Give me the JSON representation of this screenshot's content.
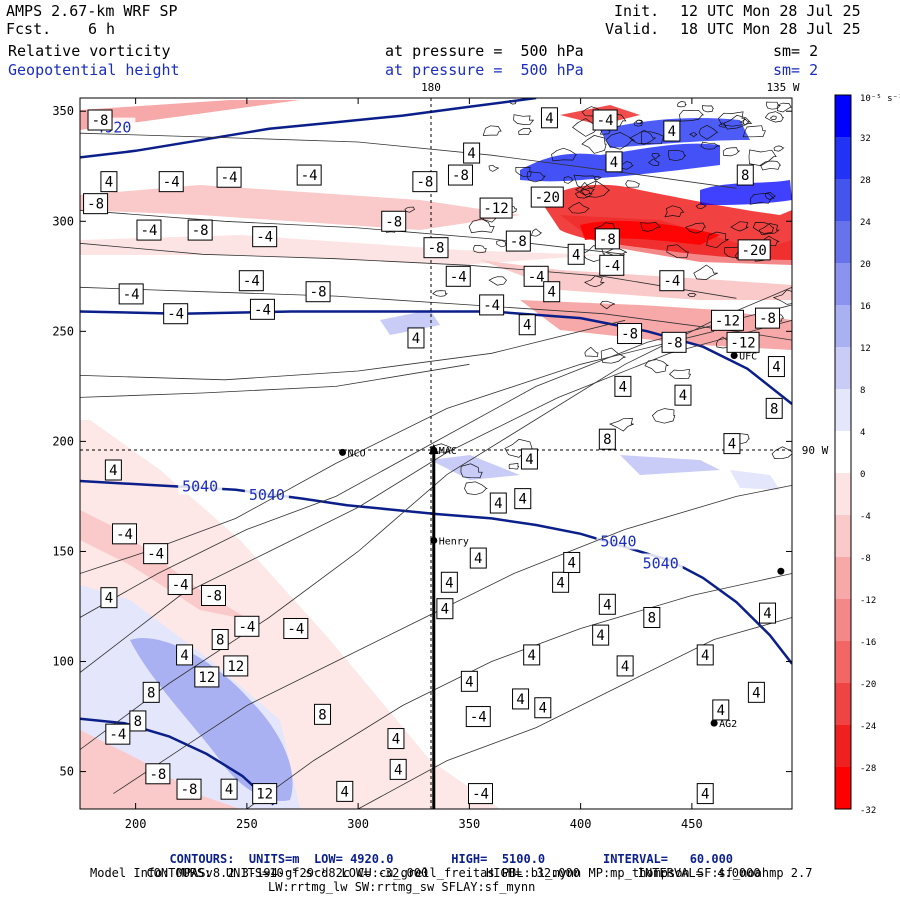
{
  "header": {
    "model": "AMPS 2.67-km WRF SP",
    "fcst_label": "Fcst.",
    "fcst_value": "6 h",
    "init_label": "Init.",
    "init_value": "12 UTC Mon 28 Jul 25",
    "valid_label": "Valid.",
    "valid_value": "18 UTC Mon 28 Jul 25",
    "field1": "Relative vorticity",
    "field2": "Geopotential height",
    "pressure1": "at pressure =  500 hPa",
    "pressure2": "at pressure =  500 hPa",
    "sm1": "sm= 2",
    "sm2": "sm= 2"
  },
  "map_labels": {
    "lon_180": "180",
    "lon_135w": "135 W",
    "lat_90w": "90 W"
  },
  "stations": [
    {
      "name": "NCO",
      "x": 293,
      "y": 195
    },
    {
      "name": "Henry",
      "x": 334,
      "y": 155
    },
    {
      "name": "MAC",
      "x": 334,
      "y": 196
    },
    {
      "name": "UFC",
      "x": 469,
      "y": 239
    },
    {
      "name": "AG2",
      "x": 460,
      "y": 72
    },
    {
      "name": "",
      "x": 490,
      "y": 141
    }
  ],
  "colorbar": {
    "unit": "10⁻⁵ s⁻¹",
    "levels": [
      32,
      28,
      24,
      20,
      16,
      12,
      8,
      4,
      0,
      -4,
      -8,
      -12,
      -16,
      -20,
      -24,
      -28,
      -32
    ],
    "colors": [
      "#0000ff",
      "#2233f5",
      "#4455ee",
      "#6673ea",
      "#8a93ef",
      "#aab1f3",
      "#c8ccf7",
      "#e4e6fb",
      "#ffffff",
      "#fde4e4",
      "#fac9c9",
      "#f7a9a9",
      "#f48888",
      "#f26666",
      "#f04444",
      "#ef2020",
      "#ff0000"
    ]
  },
  "chart_data": {
    "type": "contour",
    "xlim": [
      175,
      495
    ],
    "ylim": [
      33,
      356
    ],
    "xticks": [
      200,
      250,
      300,
      350,
      400,
      450
    ],
    "yticks": [
      50,
      100,
      150,
      200,
      250,
      300,
      350
    ],
    "cross_section": {
      "x": [
        334,
        334
      ],
      "y": [
        33,
        197
      ]
    },
    "height_contours": [
      {
        "value": 4920,
        "label": "4920",
        "points": [
          [
            175,
            329
          ],
          [
            200,
            332
          ],
          [
            230,
            337
          ],
          [
            260,
            342
          ],
          [
            290,
            345
          ],
          [
            320,
            348
          ],
          [
            350,
            352
          ],
          [
            380,
            356
          ]
        ]
      },
      {
        "value": 4980,
        "label": "",
        "points": [
          [
            175,
            259
          ],
          [
            220,
            258
          ],
          [
            270,
            259
          ],
          [
            320,
            259
          ],
          [
            360,
            259
          ],
          [
            400,
            256
          ],
          [
            430,
            250
          ],
          [
            455,
            243
          ],
          [
            475,
            233
          ],
          [
            495,
            217
          ]
        ]
      },
      {
        "value": 5040,
        "label": "5040",
        "points": [
          [
            175,
            182
          ],
          [
            210,
            180
          ],
          [
            245,
            178
          ],
          [
            275,
            174
          ],
          [
            295,
            171
          ],
          [
            315,
            169
          ],
          [
            335,
            167
          ],
          [
            360,
            165
          ],
          [
            380,
            162
          ],
          [
            400,
            158
          ],
          [
            420,
            152
          ],
          [
            440,
            146
          ],
          [
            455,
            138
          ],
          [
            470,
            127
          ],
          [
            485,
            112
          ],
          [
            495,
            99
          ]
        ]
      },
      {
        "value": 5100,
        "label": "",
        "points": [
          [
            175,
            74
          ],
          [
            195,
            72
          ],
          [
            215,
            66
          ],
          [
            232,
            58
          ],
          [
            248,
            48
          ],
          [
            262,
            35
          ]
        ]
      }
    ],
    "vorticity_labels": [
      {
        "v": -8,
        "x": 184,
        "y": 346
      },
      {
        "v": -4,
        "x": 278,
        "y": 321
      },
      {
        "v": 4,
        "x": 188,
        "y": 318
      },
      {
        "v": -4,
        "x": 216,
        "y": 318
      },
      {
        "v": -4,
        "x": 242,
        "y": 320
      },
      {
        "v": -8,
        "x": 182,
        "y": 308
      },
      {
        "v": -4,
        "x": 206,
        "y": 296
      },
      {
        "v": -8,
        "x": 229,
        "y": 296
      },
      {
        "v": -4,
        "x": 258,
        "y": 293
      },
      {
        "v": -4,
        "x": 252,
        "y": 273
      },
      {
        "v": -8,
        "x": 282,
        "y": 268
      },
      {
        "v": -4,
        "x": 198,
        "y": 267
      },
      {
        "v": -4,
        "x": 218,
        "y": 258
      },
      {
        "v": -4,
        "x": 257,
        "y": 260
      },
      {
        "v": -8,
        "x": 330,
        "y": 318
      },
      {
        "v": -8,
        "x": 346,
        "y": 321
      },
      {
        "v": -8,
        "x": 316,
        "y": 300
      },
      {
        "v": -8,
        "x": 335,
        "y": 288
      },
      {
        "v": -4,
        "x": 345,
        "y": 275
      },
      {
        "v": -8,
        "x": 372,
        "y": 291
      },
      {
        "v": -4,
        "x": 380,
        "y": 275
      },
      {
        "v": 4,
        "x": 387,
        "y": 268
      },
      {
        "v": 4,
        "x": 386,
        "y": 347
      },
      {
        "v": -4,
        "x": 411,
        "y": 346
      },
      {
        "v": 4,
        "x": 351,
        "y": 331
      },
      {
        "v": -12,
        "x": 362,
        "y": 306
      },
      {
        "v": -20,
        "x": 385,
        "y": 311
      },
      {
        "v": -8,
        "x": 412,
        "y": 292
      },
      {
        "v": -4,
        "x": 414,
        "y": 280
      },
      {
        "v": 4,
        "x": 398,
        "y": 285
      },
      {
        "v": -4,
        "x": 360,
        "y": 262
      },
      {
        "v": 4,
        "x": 376,
        "y": 253
      },
      {
        "v": 4,
        "x": 326,
        "y": 247
      },
      {
        "v": -4,
        "x": 441,
        "y": 273
      },
      {
        "v": -12,
        "x": 466,
        "y": 255
      },
      {
        "v": -8,
        "x": 484,
        "y": 256
      },
      {
        "v": -8,
        "x": 422,
        "y": 249
      },
      {
        "v": -8,
        "x": 442,
        "y": 245
      },
      {
        "v": -12,
        "x": 473,
        "y": 245
      },
      {
        "v": 4,
        "x": 488,
        "y": 234
      },
      {
        "v": 4,
        "x": 446,
        "y": 221
      },
      {
        "v": 4,
        "x": 419,
        "y": 225
      },
      {
        "v": 8,
        "x": 487,
        "y": 215
      },
      {
        "v": 8,
        "x": 412,
        "y": 201
      },
      {
        "v": 4,
        "x": 468,
        "y": 199
      },
      {
        "v": 4,
        "x": 377,
        "y": 192
      },
      {
        "v": 4,
        "x": 374,
        "y": 174
      },
      {
        "v": 4,
        "x": 363,
        "y": 172
      },
      {
        "v": -20,
        "x": 478,
        "y": 287
      },
      {
        "v": 8,
        "x": 474,
        "y": 321
      },
      {
        "v": 4,
        "x": 441,
        "y": 341
      },
      {
        "v": 4,
        "x": 415,
        "y": 327
      },
      {
        "v": 4,
        "x": 190,
        "y": 187
      },
      {
        "v": -4,
        "x": 195,
        "y": 158
      },
      {
        "v": -4,
        "x": 209,
        "y": 149
      },
      {
        "v": -4,
        "x": 220,
        "y": 135
      },
      {
        "v": -8,
        "x": 235,
        "y": 130
      },
      {
        "v": -4,
        "x": 250,
        "y": 116
      },
      {
        "v": -4,
        "x": 272,
        "y": 115
      },
      {
        "v": 4,
        "x": 188,
        "y": 129
      },
      {
        "v": 8,
        "x": 238,
        "y": 110
      },
      {
        "v": 4,
        "x": 222,
        "y": 103
      },
      {
        "v": 12,
        "x": 232,
        "y": 93
      },
      {
        "v": 12,
        "x": 245,
        "y": 98
      },
      {
        "v": 8,
        "x": 207,
        "y": 86
      },
      {
        "v": 8,
        "x": 201,
        "y": 73
      },
      {
        "v": -4,
        "x": 192,
        "y": 67
      },
      {
        "v": -8,
        "x": 210,
        "y": 49
      },
      {
        "v": -8,
        "x": 224,
        "y": 42
      },
      {
        "v": 4,
        "x": 242,
        "y": 42
      },
      {
        "v": 12,
        "x": 258,
        "y": 40
      },
      {
        "v": 8,
        "x": 284,
        "y": 76
      },
      {
        "v": 4,
        "x": 317,
        "y": 65
      },
      {
        "v": 4,
        "x": 318,
        "y": 51
      },
      {
        "v": 4,
        "x": 294,
        "y": 41
      },
      {
        "v": -4,
        "x": 355,
        "y": 40
      },
      {
        "v": -4,
        "x": 354,
        "y": 75
      },
      {
        "v": 4,
        "x": 350,
        "y": 91
      },
      {
        "v": 4,
        "x": 373,
        "y": 83
      },
      {
        "v": 4,
        "x": 354,
        "y": 147
      },
      {
        "v": 4,
        "x": 341,
        "y": 136
      },
      {
        "v": 4,
        "x": 391,
        "y": 136
      },
      {
        "v": 4,
        "x": 412,
        "y": 126
      },
      {
        "v": 4,
        "x": 409,
        "y": 112
      },
      {
        "v": 4,
        "x": 378,
        "y": 103
      },
      {
        "v": 4,
        "x": 420,
        "y": 98
      },
      {
        "v": 8,
        "x": 432,
        "y": 120
      },
      {
        "v": 4,
        "x": 456,
        "y": 103
      },
      {
        "v": 4,
        "x": 479,
        "y": 86
      },
      {
        "v": 4,
        "x": 383,
        "y": 79
      },
      {
        "v": 4,
        "x": 456,
        "y": 40
      },
      {
        "v": 4,
        "x": 463,
        "y": 78
      },
      {
        "v": 4,
        "x": 484,
        "y": 122
      },
      {
        "v": 4,
        "x": 339,
        "y": 124
      },
      {
        "v": 4,
        "x": 396,
        "y": 145
      }
    ],
    "colorbar_ticks": [
      "10⁻⁵ s⁻¹",
      "32",
      "28",
      "24",
      "20",
      "16",
      "12",
      "8",
      "4",
      "0",
      "-4",
      "-8",
      "-12",
      "-16",
      "-20",
      "-24",
      "-28",
      "-32"
    ]
  },
  "footer": {
    "line1_prefix": "CONTOURS:  UNITS=m  LOW=",
    "line1_low": "4920.0",
    "line1_high_label": "HIGH=",
    "line1_high": "5100.0",
    "line1_interval_label": "INTERVAL=",
    "line1_interval": "60.000",
    "line2_prefix": "CONTOURS:  UNITS=10⁻⁵ s⁻¹  LOW=",
    "line2_low": "-32.000",
    "line2_high_label": "HIGH=",
    "line2_high": "32.000",
    "line2_interval_label": "INTERVAL=",
    "line2_interval": "4.0000",
    "model_info": "Model Info: MPASv8.2.3-194-gf29cd82c CU:cu_grell_freitas PBL:bl_mynn MP:mp_thompson SF:sf_noahmp 2.7",
    "model_info2": "LW:rrtmg_lw SW:rrtmg_sw SFLAY:sf_mynn"
  }
}
